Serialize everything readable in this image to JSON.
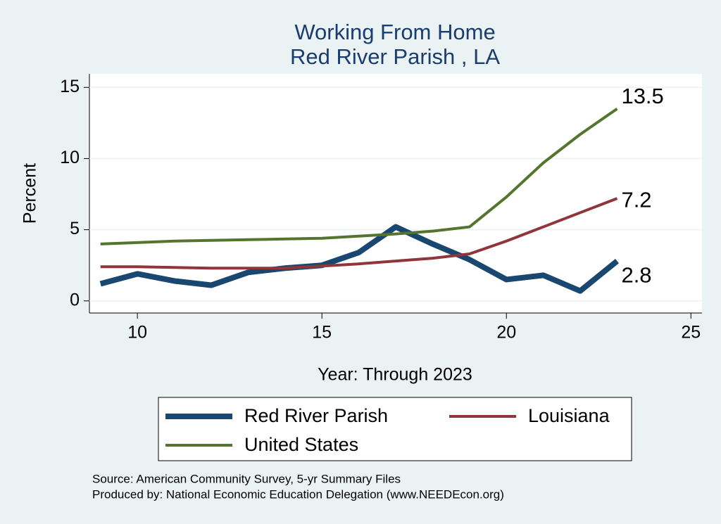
{
  "chart_data": {
    "type": "line",
    "title": "Working From Home",
    "subtitle": "Red River Parish , LA",
    "x_label": "Year: Through 2023",
    "y_label": "Percent",
    "x": [
      9,
      10,
      11,
      12,
      13,
      14,
      15,
      16,
      17,
      18,
      19,
      20,
      21,
      22,
      23
    ],
    "series": [
      {
        "name": "Red River Parish",
        "color": "#1a476f",
        "values": [
          1.2,
          1.9,
          1.4,
          1.1,
          2.0,
          2.3,
          2.5,
          3.4,
          5.2,
          4.0,
          2.9,
          1.5,
          1.8,
          0.7,
          2.8
        ]
      },
      {
        "name": "Louisiana",
        "color": "#90353b",
        "values": [
          2.4,
          2.4,
          2.35,
          2.3,
          2.3,
          2.3,
          2.45,
          2.6,
          2.8,
          3.0,
          3.3,
          4.2,
          5.2,
          6.2,
          7.2
        ]
      },
      {
        "name": "United States",
        "color": "#55752f",
        "values": [
          4.0,
          4.1,
          4.2,
          4.25,
          4.3,
          4.35,
          4.4,
          4.55,
          4.7,
          4.9,
          5.2,
          7.3,
          9.7,
          11.7,
          13.5
        ]
      }
    ],
    "xlim": [
      8.7,
      25.3
    ],
    "xticks": [
      10,
      15,
      20,
      25
    ],
    "ylim": [
      -0.85,
      15.95
    ],
    "yticks": [
      0,
      5,
      10,
      15
    ],
    "grid": true,
    "legend": "bottom",
    "notes": [
      "Source: American Community Survey, 5-yr Summary Files",
      "Produced by: National Economic Education Delegation (www.NEEDEcon.org)"
    ]
  }
}
